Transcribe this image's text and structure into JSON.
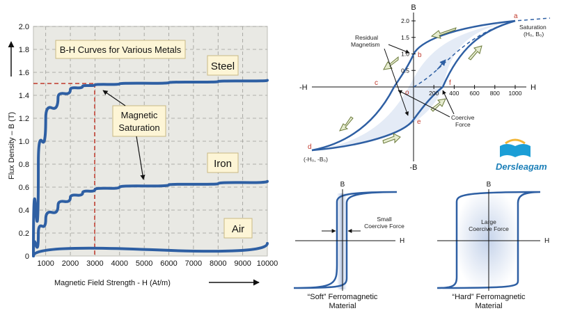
{
  "left_chart": {
    "title": "B-H Curves for Various Metals",
    "y_label": "Flux Density – B (T)",
    "x_label": "Magnetic Field Strength -    H (At/m)",
    "y_ticks": [
      "2.0",
      "1.8",
      "1.6",
      "1.4",
      "1.2",
      "1.0",
      "0.8",
      "0.6",
      "0.4",
      "0.2",
      "0"
    ],
    "x_ticks": [
      "1000",
      "2000",
      "3000",
      "4000",
      "5000",
      "6000",
      "7000",
      "8000",
      "9000",
      "10000"
    ],
    "annotation": "Magnetic\nSaturation",
    "annotation_line1": "Magnetic",
    "annotation_line2": "Saturation",
    "colors": {
      "curve": "#2e5fa3",
      "grid_bg": "#e9e9e4",
      "box_bg": "#fdf5d6",
      "dashed": "#c0392b"
    }
  },
  "chart_data": {
    "type": "line",
    "title": "B-H Curves for Various Metals",
    "xlabel": "Magnetic Field Strength -    H (At/m)",
    "ylabel": "Flux Density – B (T)",
    "xlim": [
      500,
      10000
    ],
    "ylim": [
      0,
      2.0
    ],
    "grid": true,
    "series": [
      {
        "name": "Steel",
        "x": [
          500,
          700,
          1000,
          1500,
          2000,
          2500,
          3000,
          4000,
          6000,
          8000,
          10000
        ],
        "y": [
          0,
          0.8,
          1.2,
          1.38,
          1.45,
          1.48,
          1.49,
          1.5,
          1.51,
          1.52,
          1.53
        ]
      },
      {
        "name": "Iron",
        "x": [
          500,
          700,
          1000,
          1500,
          2000,
          2500,
          3000,
          4000,
          6000,
          8000,
          10000
        ],
        "y": [
          0,
          0.2,
          0.32,
          0.44,
          0.51,
          0.55,
          0.58,
          0.6,
          0.62,
          0.63,
          0.65
        ]
      },
      {
        "name": "Air",
        "x": [
          500,
          10000
        ],
        "y": [
          0,
          0.11
        ]
      }
    ],
    "annotations": [
      {
        "text": "Magnetic\nSaturation",
        "target_series": "Steel",
        "x": 3000,
        "y": 1.49
      },
      {
        "text": "Magnetic\nSaturation",
        "target_series": "Iron",
        "x": 4500,
        "y": 0.6
      }
    ]
  },
  "hysteresis": {
    "axis_top": "B",
    "axis_bottom": "-B",
    "axis_left": "-H",
    "axis_right": "H",
    "b_ticks": [
      "2.0",
      "1.5",
      "1.0",
      "0.5"
    ],
    "h_ticks": [
      "200",
      "400",
      "600",
      "800",
      "1000"
    ],
    "origin": "o",
    "points": {
      "a": "a",
      "b": "b",
      "c": "c",
      "d": "d",
      "e": "e",
      "f": "f"
    },
    "saturation_label": "Saturation",
    "saturation_coords": "(H₀, B₀)",
    "neg_saturation_coords": "(-H₀, -B₀)",
    "residual_line1": "Residual",
    "residual_line2": "Magnetism",
    "coercive_line1": "Coercive",
    "coercive_line2": "Force",
    "logo_text": "Dersleagam"
  },
  "soft_panel": {
    "axis_b": "B",
    "axis_h": "H",
    "note_line1": "Small",
    "note_line2": "Coercive Force",
    "caption_line1": "“Soft” Ferromagnetic",
    "caption_line2": "Material"
  },
  "hard_panel": {
    "axis_b": "B",
    "axis_h": "H",
    "note_line1": "Large",
    "note_line2": "Coercive Force",
    "caption_line1": "“Hard” Ferromagnetic",
    "caption_line2": "Material"
  }
}
